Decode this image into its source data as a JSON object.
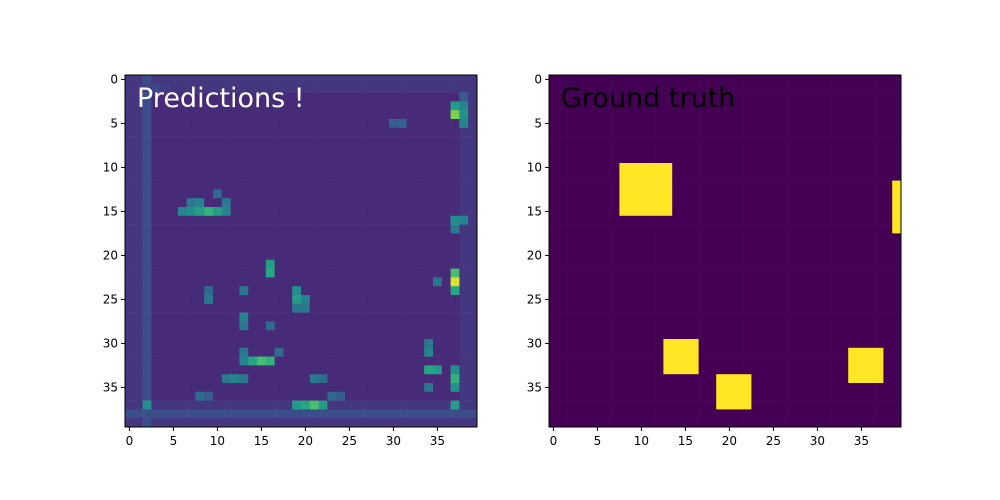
{
  "chart_data": [
    {
      "type": "heatmap",
      "title": "",
      "annotation": "Predictions !",
      "annotation_color": "#ffffff",
      "colormap": "viridis",
      "shape": [
        40,
        40
      ],
      "x_ticks": [
        0,
        5,
        10,
        15,
        20,
        25,
        30,
        35
      ],
      "y_ticks": [
        0,
        5,
        10,
        15,
        20,
        25,
        30,
        35
      ],
      "xlim": [
        -0.5,
        39.5
      ],
      "ylim": [
        39.5,
        -0.5
      ],
      "value_range": [
        0,
        1
      ],
      "background_level": 0.12,
      "hot_cells": [
        {
          "r": 1,
          "c": 2,
          "v": 0.2
        },
        {
          "r": 1,
          "c": 3,
          "v": 0.22
        },
        {
          "r": 1,
          "c": 4,
          "v": 0.18
        },
        {
          "r": 2,
          "c": 38,
          "v": 0.3
        },
        {
          "r": 3,
          "c": 37,
          "v": 0.55
        },
        {
          "r": 3,
          "c": 38,
          "v": 0.45
        },
        {
          "r": 4,
          "c": 37,
          "v": 0.8
        },
        {
          "r": 4,
          "c": 38,
          "v": 0.5
        },
        {
          "r": 5,
          "c": 38,
          "v": 0.45
        },
        {
          "r": 5,
          "c": 30,
          "v": 0.3
        },
        {
          "r": 5,
          "c": 31,
          "v": 0.32
        },
        {
          "r": 14,
          "c": 7,
          "v": 0.4
        },
        {
          "r": 14,
          "c": 8,
          "v": 0.45
        },
        {
          "r": 14,
          "c": 11,
          "v": 0.4
        },
        {
          "r": 15,
          "c": 6,
          "v": 0.45
        },
        {
          "r": 15,
          "c": 7,
          "v": 0.5
        },
        {
          "r": 15,
          "c": 8,
          "v": 0.55
        },
        {
          "r": 15,
          "c": 9,
          "v": 0.65
        },
        {
          "r": 15,
          "c": 10,
          "v": 0.55
        },
        {
          "r": 15,
          "c": 11,
          "v": 0.45
        },
        {
          "r": 13,
          "c": 10,
          "v": 0.35
        },
        {
          "r": 16,
          "c": 37,
          "v": 0.5
        },
        {
          "r": 16,
          "c": 38,
          "v": 0.45
        },
        {
          "r": 17,
          "c": 37,
          "v": 0.4
        },
        {
          "r": 21,
          "c": 16,
          "v": 0.55
        },
        {
          "r": 22,
          "c": 16,
          "v": 0.6
        },
        {
          "r": 22,
          "c": 37,
          "v": 0.7
        },
        {
          "r": 23,
          "c": 37,
          "v": 0.95
        },
        {
          "r": 24,
          "c": 37,
          "v": 0.6
        },
        {
          "r": 23,
          "c": 35,
          "v": 0.4
        },
        {
          "r": 24,
          "c": 19,
          "v": 0.5
        },
        {
          "r": 25,
          "c": 19,
          "v": 0.55
        },
        {
          "r": 25,
          "c": 20,
          "v": 0.45
        },
        {
          "r": 26,
          "c": 19,
          "v": 0.4
        },
        {
          "r": 26,
          "c": 20,
          "v": 0.4
        },
        {
          "r": 24,
          "c": 9,
          "v": 0.35
        },
        {
          "r": 25,
          "c": 9,
          "v": 0.4
        },
        {
          "r": 24,
          "c": 13,
          "v": 0.4
        },
        {
          "r": 27,
          "c": 13,
          "v": 0.45
        },
        {
          "r": 28,
          "c": 13,
          "v": 0.4
        },
        {
          "r": 28,
          "c": 16,
          "v": 0.35
        },
        {
          "r": 30,
          "c": 34,
          "v": 0.4
        },
        {
          "r": 31,
          "c": 34,
          "v": 0.45
        },
        {
          "r": 31,
          "c": 13,
          "v": 0.4
        },
        {
          "r": 32,
          "c": 13,
          "v": 0.45
        },
        {
          "r": 32,
          "c": 14,
          "v": 0.6
        },
        {
          "r": 32,
          "c": 15,
          "v": 0.7
        },
        {
          "r": 32,
          "c": 16,
          "v": 0.65
        },
        {
          "r": 31,
          "c": 17,
          "v": 0.35
        },
        {
          "r": 33,
          "c": 34,
          "v": 0.6
        },
        {
          "r": 33,
          "c": 35,
          "v": 0.55
        },
        {
          "r": 34,
          "c": 37,
          "v": 0.65
        },
        {
          "r": 33,
          "c": 37,
          "v": 0.5
        },
        {
          "r": 35,
          "c": 34,
          "v": 0.4
        },
        {
          "r": 35,
          "c": 37,
          "v": 0.5
        },
        {
          "r": 34,
          "c": 11,
          "v": 0.4
        },
        {
          "r": 34,
          "c": 12,
          "v": 0.45
        },
        {
          "r": 34,
          "c": 13,
          "v": 0.4
        },
        {
          "r": 34,
          "c": 21,
          "v": 0.4
        },
        {
          "r": 34,
          "c": 22,
          "v": 0.35
        },
        {
          "r": 36,
          "c": 8,
          "v": 0.35
        },
        {
          "r": 36,
          "c": 9,
          "v": 0.3
        },
        {
          "r": 37,
          "c": 2,
          "v": 0.5
        },
        {
          "r": 37,
          "c": 19,
          "v": 0.55
        },
        {
          "r": 37,
          "c": 20,
          "v": 0.6
        },
        {
          "r": 37,
          "c": 21,
          "v": 0.7
        },
        {
          "r": 37,
          "c": 22,
          "v": 0.55
        },
        {
          "r": 37,
          "c": 37,
          "v": 0.55
        },
        {
          "r": 36,
          "c": 23,
          "v": 0.35
        },
        {
          "r": 36,
          "c": 24,
          "v": 0.3
        }
      ]
    },
    {
      "type": "heatmap",
      "title": "",
      "annotation": "Ground truth",
      "annotation_color": "#000000",
      "colormap": "viridis",
      "shape": [
        40,
        40
      ],
      "x_ticks": [
        0,
        5,
        10,
        15,
        20,
        25,
        30,
        35
      ],
      "y_ticks": [
        0,
        5,
        10,
        15,
        20,
        25,
        30,
        35
      ],
      "xlim": [
        -0.5,
        39.5
      ],
      "ylim": [
        39.5,
        -0.5
      ],
      "value_range": [
        0,
        1
      ],
      "background_level": 0,
      "rectangles": [
        {
          "row_start": 10,
          "row_end": 15,
          "col_start": 8,
          "col_end": 13,
          "value": 1
        },
        {
          "row_start": 12,
          "row_end": 17,
          "col_start": 39,
          "col_end": 39,
          "value": 1
        },
        {
          "row_start": 30,
          "row_end": 33,
          "col_start": 13,
          "col_end": 16,
          "value": 1
        },
        {
          "row_start": 34,
          "row_end": 37,
          "col_start": 19,
          "col_end": 22,
          "value": 1
        },
        {
          "row_start": 31,
          "row_end": 34,
          "col_start": 34,
          "col_end": 37,
          "value": 1
        }
      ]
    }
  ]
}
